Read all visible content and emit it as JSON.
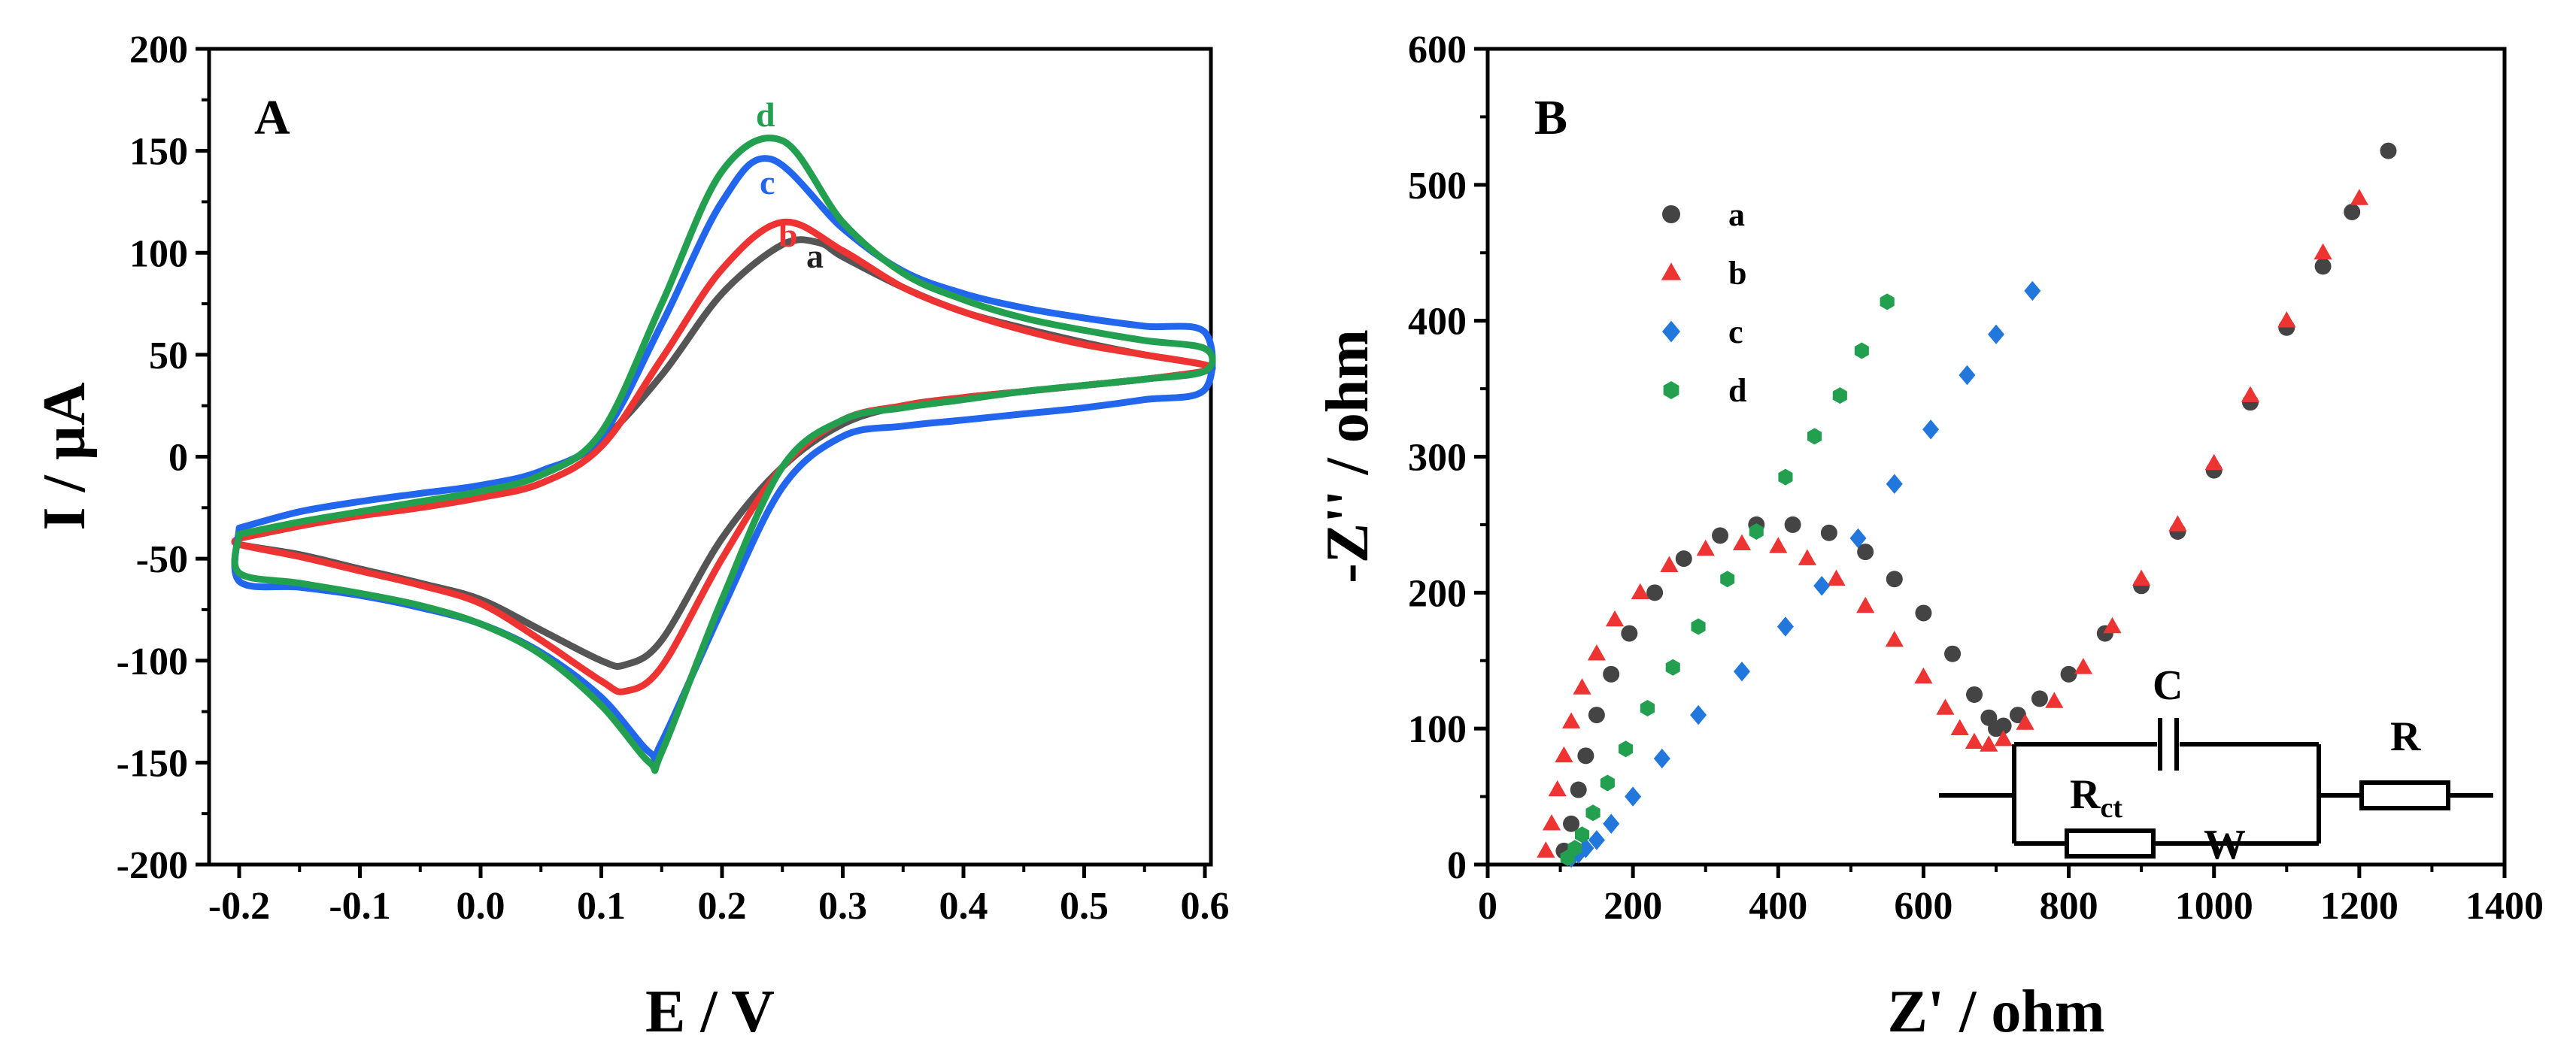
{
  "chart_data": [
    {
      "panel": "A",
      "type": "line",
      "xlabel": "E / V",
      "ylabel": "I / µA",
      "xlim": [
        -0.2,
        0.6
      ],
      "ylim": [
        -200,
        200
      ],
      "xticks": [
        "-0.2",
        "-0.1",
        "0.0",
        "0.1",
        "0.2",
        "0.3",
        "0.4",
        "0.5",
        "0.6"
      ],
      "yticks": [
        "200",
        "150",
        "100",
        "50",
        "0",
        "-50",
        "-100",
        "-150",
        "-200"
      ],
      "series": [
        {
          "name": "a",
          "color": "#555555",
          "x": [
            -0.2,
            -0.15,
            -0.1,
            -0.05,
            0.0,
            0.05,
            0.1,
            0.15,
            0.2,
            0.25,
            0.28,
            0.3,
            0.35,
            0.4,
            0.45,
            0.5,
            0.55,
            0.6,
            0.6,
            0.55,
            0.5,
            0.45,
            0.4,
            0.35,
            0.3,
            0.25,
            0.2,
            0.15,
            0.12,
            0.1,
            0.05,
            0.0,
            -0.05,
            -0.1,
            -0.15,
            -0.2,
            -0.2
          ],
          "y": [
            -40,
            -34,
            -28,
            -23,
            -17,
            -9,
            8,
            40,
            80,
            104,
            105,
            98,
            83,
            71,
            63,
            56,
            50,
            45,
            42,
            38,
            35,
            32,
            29,
            25,
            16,
            -5,
            -40,
            -90,
            -102,
            -100,
            -85,
            -70,
            -62,
            -55,
            -48,
            -43,
            -40
          ]
        },
        {
          "name": "b",
          "color": "#ee3333",
          "x": [
            -0.2,
            -0.15,
            -0.1,
            -0.05,
            0.0,
            0.05,
            0.1,
            0.15,
            0.2,
            0.25,
            0.3,
            0.35,
            0.4,
            0.45,
            0.5,
            0.55,
            0.6,
            0.6,
            0.55,
            0.5,
            0.45,
            0.4,
            0.35,
            0.3,
            0.25,
            0.2,
            0.15,
            0.12,
            0.1,
            0.05,
            0.0,
            -0.05,
            -0.1,
            -0.15,
            -0.2,
            -0.2
          ],
          "y": [
            -40,
            -34,
            -29,
            -25,
            -20,
            -13,
            5,
            48,
            92,
            115,
            101,
            83,
            71,
            62,
            55,
            50,
            45,
            42,
            38,
            35,
            32,
            29,
            25,
            18,
            -5,
            -50,
            -103,
            -115,
            -110,
            -90,
            -72,
            -63,
            -56,
            -49,
            -43,
            -40
          ]
        },
        {
          "name": "c",
          "color": "#2266ee",
          "x": [
            -0.2,
            -0.15,
            -0.1,
            -0.05,
            0.0,
            0.05,
            0.1,
            0.15,
            0.2,
            0.24,
            0.3,
            0.35,
            0.4,
            0.45,
            0.5,
            0.55,
            0.6,
            0.6,
            0.55,
            0.5,
            0.45,
            0.4,
            0.35,
            0.3,
            0.25,
            0.2,
            0.15,
            0.14,
            0.1,
            0.05,
            0.0,
            -0.05,
            -0.1,
            -0.15,
            -0.2,
            -0.2
          ],
          "y": [
            -35,
            -27,
            -22,
            -18,
            -14,
            -7,
            10,
            65,
            125,
            146,
            112,
            91,
            80,
            73,
            68,
            64,
            61,
            33,
            28,
            24,
            21,
            18,
            15,
            10,
            -15,
            -75,
            -140,
            -145,
            -118,
            -96,
            -82,
            -74,
            -68,
            -64,
            -61,
            -35
          ]
        },
        {
          "name": "d",
          "color": "#22a050",
          "x": [
            -0.2,
            -0.15,
            -0.1,
            -0.05,
            0.0,
            0.05,
            0.1,
            0.15,
            0.2,
            0.25,
            0.3,
            0.35,
            0.4,
            0.45,
            0.5,
            0.55,
            0.6,
            0.6,
            0.55,
            0.5,
            0.45,
            0.4,
            0.35,
            0.3,
            0.25,
            0.2,
            0.15,
            0.14,
            0.1,
            0.05,
            0.0,
            -0.05,
            -0.1,
            -0.15,
            -0.2,
            -0.2
          ],
          "y": [
            -38,
            -32,
            -27,
            -22,
            -17,
            -9,
            12,
            75,
            140,
            155,
            115,
            90,
            77,
            68,
            62,
            57,
            53,
            42,
            38,
            35,
            32,
            28,
            24,
            18,
            -5,
            -70,
            -145,
            -150,
            -122,
            -97,
            -82,
            -73,
            -67,
            -62,
            -57,
            -38
          ]
        }
      ],
      "labels": [
        "a",
        "b",
        "c",
        "d"
      ]
    },
    {
      "panel": "B",
      "type": "scatter",
      "xlabel": "Z' / ohm",
      "ylabel": "-Z'' / ohm",
      "xlim": [
        0,
        1400
      ],
      "ylim": [
        0,
        600
      ],
      "xticks": [
        "0",
        "200",
        "400",
        "600",
        "800",
        "1000",
        "1200",
        "1400"
      ],
      "yticks": [
        "600",
        "500",
        "400",
        "300",
        "200",
        "100",
        "0"
      ],
      "legend_position": "top-left",
      "series": [
        {
          "name": "a",
          "color": "#444444",
          "marker": "circle",
          "x": [
            105,
            115,
            125,
            135,
            150,
            170,
            195,
            230,
            270,
            320,
            370,
            420,
            470,
            520,
            560,
            600,
            640,
            670,
            690,
            700,
            710,
            730,
            760,
            800,
            850,
            900,
            950,
            1000,
            1050,
            1100,
            1150,
            1190,
            1240
          ],
          "y": [
            10,
            30,
            55,
            80,
            110,
            140,
            170,
            200,
            225,
            242,
            250,
            250,
            244,
            230,
            210,
            185,
            155,
            125,
            108,
            100,
            102,
            110,
            122,
            140,
            170,
            205,
            245,
            290,
            340,
            395,
            440,
            480,
            525
          ]
        },
        {
          "name": "b",
          "color": "#ee3333",
          "marker": "triangle",
          "x": [
            80,
            88,
            96,
            105,
            115,
            130,
            150,
            175,
            210,
            250,
            300,
            350,
            400,
            440,
            480,
            520,
            560,
            600,
            630,
            650,
            670,
            690,
            710,
            740,
            780,
            820,
            860,
            900,
            950,
            1000,
            1050,
            1100,
            1150,
            1200
          ],
          "y": [
            10,
            30,
            55,
            80,
            105,
            130,
            155,
            180,
            200,
            220,
            232,
            236,
            234,
            225,
            210,
            190,
            165,
            138,
            115,
            100,
            90,
            88,
            92,
            104,
            120,
            145,
            175,
            210,
            250,
            295,
            345,
            400,
            450,
            490
          ]
        },
        {
          "name": "c",
          "color": "#2277dd",
          "marker": "diamond",
          "x": [
            115,
            125,
            135,
            150,
            170,
            200,
            240,
            290,
            350,
            410,
            460,
            510,
            560,
            610,
            660,
            700,
            750
          ],
          "y": [
            5,
            8,
            12,
            18,
            30,
            50,
            78,
            110,
            142,
            175,
            205,
            240,
            280,
            320,
            360,
            390,
            422
          ]
        },
        {
          "name": "d",
          "color": "#22a050",
          "marker": "hexagon",
          "x": [
            110,
            120,
            130,
            145,
            165,
            190,
            220,
            255,
            290,
            330,
            370,
            410,
            450,
            485,
            515,
            550
          ],
          "y": [
            5,
            12,
            22,
            38,
            60,
            85,
            115,
            145,
            175,
            210,
            245,
            285,
            315,
            345,
            378,
            414
          ]
        }
      ],
      "circuit_labels": {
        "capacitor": "C",
        "resistor": "R",
        "charge_transfer": "Rct",
        "charge_transfer_main": "R",
        "charge_transfer_sub": "ct",
        "warburg": "W"
      }
    }
  ]
}
